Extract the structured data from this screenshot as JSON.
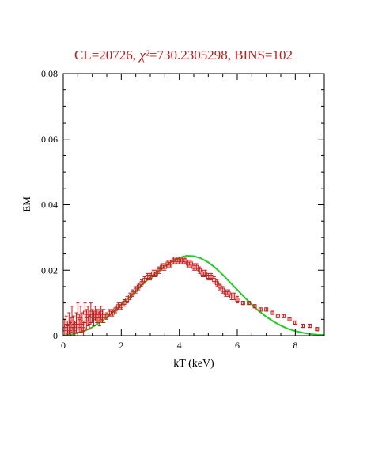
{
  "title": {
    "prefix": "CL=20726, ",
    "chi_symbol": "χ²",
    "suffix": "=730.2305298, BINS=102"
  },
  "colors": {
    "title": "#cc1a1a",
    "data": "#cc1a1a",
    "model": "#22cc22",
    "axis": "#000000"
  },
  "chart_data": {
    "type": "scatter",
    "xlabel": "kT (keV)",
    "ylabel": "EM",
    "xlim": [
      0,
      9
    ],
    "ylim": [
      0,
      0.08
    ],
    "x_ticks": [
      0,
      2,
      4,
      6,
      8
    ],
    "x_tick_labels": [
      "0",
      "2",
      "4",
      "6",
      "8"
    ],
    "y_ticks": [
      0,
      0.02,
      0.04,
      0.06,
      0.08
    ],
    "y_tick_labels": [
      "0",
      "0.02",
      "0.04",
      "0.06",
      "0.08"
    ],
    "grid": false,
    "series": [
      {
        "kind": "points-with-error-bars",
        "x": [
          0.05,
          0.1,
          0.15,
          0.2,
          0.25,
          0.3,
          0.35,
          0.4,
          0.45,
          0.5,
          0.55,
          0.6,
          0.65,
          0.7,
          0.75,
          0.8,
          0.85,
          0.9,
          0.95,
          1.0,
          1.05,
          1.1,
          1.15,
          1.2,
          1.25,
          1.3,
          1.35,
          1.4,
          1.5,
          1.6,
          1.7,
          1.8,
          1.9,
          2.0,
          2.1,
          2.2,
          2.3,
          2.4,
          2.5,
          2.6,
          2.7,
          2.8,
          2.9,
          3.0,
          3.1,
          3.2,
          3.3,
          3.4,
          3.5,
          3.6,
          3.7,
          3.8,
          3.9,
          4.0,
          4.1,
          4.2,
          4.3,
          4.4,
          4.5,
          4.6,
          4.7,
          4.8,
          4.9,
          5.0,
          5.1,
          5.2,
          5.3,
          5.4,
          5.5,
          5.6,
          5.7,
          5.8,
          5.9,
          6.0,
          6.2,
          6.4,
          6.6,
          6.8,
          7.0,
          7.2,
          7.4,
          7.6,
          7.8,
          8.0,
          8.25,
          8.5,
          8.75
        ],
        "y": [
          0.002,
          0.003,
          0.001,
          0.004,
          0.002,
          0.005,
          0.003,
          0.002,
          0.004,
          0.006,
          0.003,
          0.005,
          0.004,
          0.002,
          0.007,
          0.005,
          0.006,
          0.004,
          0.007,
          0.006,
          0.005,
          0.007,
          0.006,
          0.006,
          0.005,
          0.007,
          0.006,
          0.006,
          0.006,
          0.007,
          0.007,
          0.008,
          0.009,
          0.009,
          0.01,
          0.011,
          0.012,
          0.013,
          0.014,
          0.015,
          0.016,
          0.017,
          0.018,
          0.018,
          0.019,
          0.019,
          0.02,
          0.021,
          0.021,
          0.022,
          0.022,
          0.023,
          0.023,
          0.023,
          0.023,
          0.023,
          0.022,
          0.022,
          0.021,
          0.021,
          0.02,
          0.019,
          0.019,
          0.018,
          0.018,
          0.017,
          0.016,
          0.015,
          0.014,
          0.013,
          0.013,
          0.012,
          0.012,
          0.011,
          0.01,
          0.01,
          0.009,
          0.008,
          0.008,
          0.007,
          0.006,
          0.006,
          0.005,
          0.004,
          0.003,
          0.003,
          0.002
        ],
        "err": [
          0.003,
          0.003,
          0.002,
          0.003,
          0.002,
          0.004,
          0.003,
          0.002,
          0.003,
          0.004,
          0.002,
          0.004,
          0.003,
          0.002,
          0.003,
          0.003,
          0.003,
          0.002,
          0.003,
          0.002,
          0.002,
          0.002,
          0.002,
          0.002,
          0.002,
          0.002,
          0.002,
          0.002,
          0.001,
          0.001,
          0.001,
          0.001,
          0.001,
          0.001,
          0.001,
          0.001,
          0.001,
          0.001,
          0.001,
          0.001,
          0.001,
          0.001,
          0.001,
          0.001,
          0.001,
          0.001,
          0.001,
          0.001,
          0.001,
          0.001,
          0.001,
          0.001,
          0.001,
          0.001,
          0.001,
          0.001,
          0.001,
          0.001,
          0.001,
          0.001,
          0.001,
          0.001,
          0.001,
          0.001,
          0.001,
          0.001,
          0.001,
          0.001,
          0.001,
          0.001,
          0.001,
          0.001,
          0.001,
          0.001,
          0.0005,
          0.0005,
          0.0005,
          0.0005,
          0.0005,
          0.0005,
          0.0005,
          0.0005,
          0.0005,
          0.0005,
          0.0005,
          0.0005,
          0.0005
        ]
      },
      {
        "kind": "model-curve",
        "x": [
          0,
          0.25,
          0.5,
          0.75,
          1.0,
          1.25,
          1.5,
          1.75,
          2.0,
          2.25,
          2.5,
          2.75,
          3.0,
          3.25,
          3.5,
          3.75,
          4.0,
          4.25,
          4.5,
          4.75,
          5.0,
          5.25,
          5.5,
          5.75,
          6.0,
          6.25,
          6.5,
          6.75,
          7.0,
          7.25,
          7.5,
          7.75,
          8.0,
          8.25,
          8.5,
          8.75,
          9.0
        ],
        "y": [
          0.0,
          0.0003,
          0.0008,
          0.0015,
          0.0026,
          0.004,
          0.0056,
          0.0074,
          0.0094,
          0.0115,
          0.0137,
          0.0158,
          0.0178,
          0.0196,
          0.0212,
          0.0227,
          0.0238,
          0.0244,
          0.0243,
          0.0236,
          0.0224,
          0.0207,
          0.0186,
          0.0163,
          0.014,
          0.0117,
          0.0095,
          0.0075,
          0.0058,
          0.0043,
          0.0031,
          0.0021,
          0.0014,
          0.0009,
          0.0005,
          0.0003,
          0.0002
        ]
      }
    ]
  }
}
